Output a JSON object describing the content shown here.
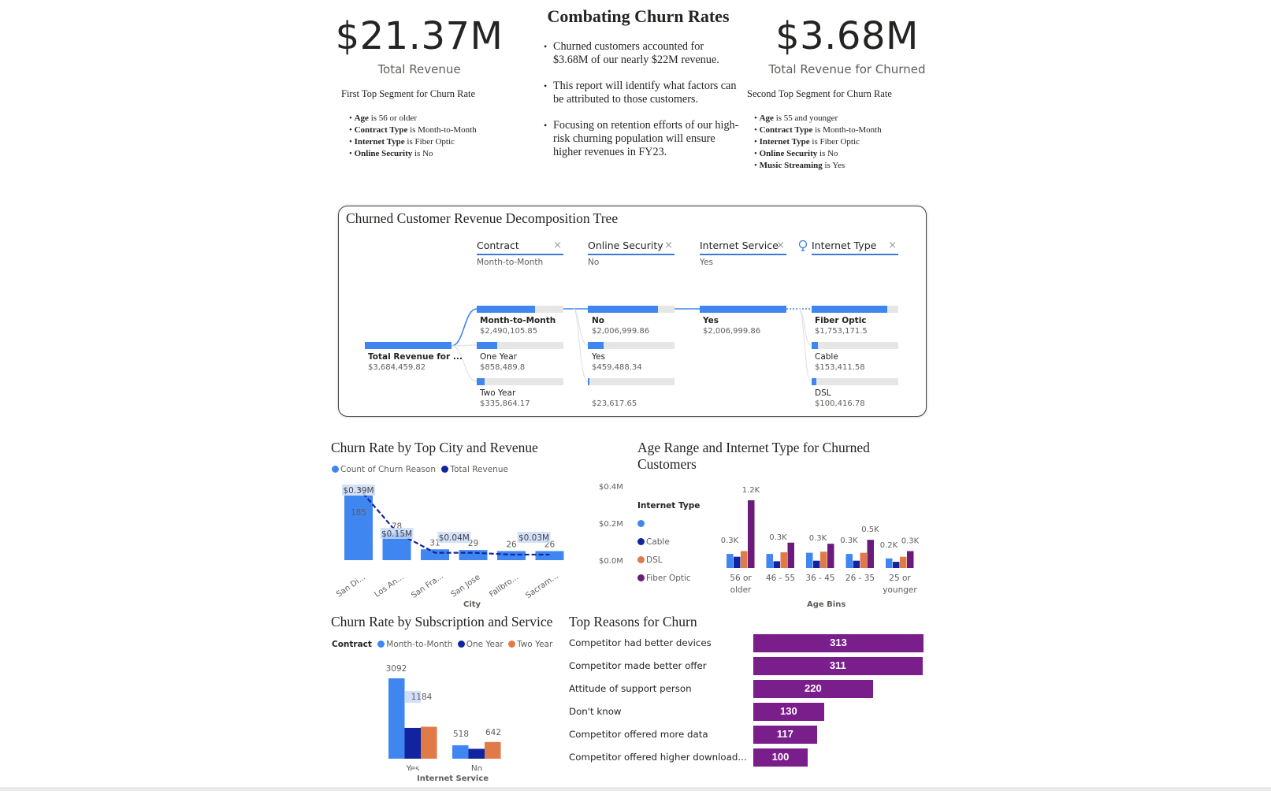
{
  "kpis": {
    "total_revenue": {
      "value": "$21.37M",
      "label": "Total Revenue"
    },
    "churned_revenue": {
      "value": "$3.68M",
      "label": "Total Revenue for Churned"
    }
  },
  "segments": {
    "first": {
      "title": "First Top Segment for Churn Rate",
      "items": [
        {
          "key": "Age",
          "rest": " is 56 or older"
        },
        {
          "key": "Contract Type",
          "rest": " is Month-to-Month"
        },
        {
          "key": "Internet Type",
          "rest": " is Fiber Optic"
        },
        {
          "key": "Online Security",
          "rest": " is No"
        }
      ]
    },
    "second": {
      "title": "Second Top Segment for Churn Rate",
      "items": [
        {
          "key": "Age",
          "rest": " is 55 and younger"
        },
        {
          "key": "Contract Type",
          "rest": " is Month-to-Month"
        },
        {
          "key": "Internet Type",
          "rest": " is Fiber Optic"
        },
        {
          "key": "Online Security",
          "rest": " is No"
        },
        {
          "key": "Music Streaming",
          "rest": " is Yes"
        }
      ]
    }
  },
  "summary": {
    "title": "Combating Churn Rates",
    "bullets": [
      "Churned customers accounted for $3.68M of our nearly $22M revenue.",
      "This report will identify what factors can be attributed to those customers.",
      "Focusing on retention efforts of our high-risk churning population will ensure higher revenues in FY23."
    ]
  },
  "tree": {
    "title": "Churned Customer Revenue Decomposition Tree",
    "levels": [
      {
        "name": "Contract",
        "selected": "Month-to-Month",
        "close": "×"
      },
      {
        "name": "Online Security",
        "selected": "No",
        "close": "×"
      },
      {
        "name": "Internet Service",
        "selected": "Yes",
        "close": "×"
      },
      {
        "name": "Internet Type",
        "selected": "",
        "close": "×"
      }
    ],
    "root": {
      "label": "Total Revenue for ...",
      "value": "$3,684,459.82"
    },
    "contract": [
      {
        "label": "Month-to-Month",
        "value": "$2,490,105.85",
        "share": 0.676
      },
      {
        "label": "One Year",
        "value": "$858,489.8",
        "share": 0.233
      },
      {
        "label": "Two Year",
        "value": "$335,864.17",
        "share": 0.091
      }
    ],
    "security": [
      {
        "label": "No",
        "value": "$2,006,999.86",
        "share": 0.806
      },
      {
        "label": "Yes",
        "value": "$459,488.34",
        "share": 0.185
      },
      {
        "label": "",
        "value": "$23,617.65",
        "share": 0.009
      }
    ],
    "service": [
      {
        "label": "Yes",
        "value": "$2,006,999.86",
        "share": 1.0
      }
    ],
    "itype": [
      {
        "label": "Fiber Optic",
        "value": "$1,753,171.5",
        "share": 0.874
      },
      {
        "label": "Cable",
        "value": "$153,411.58",
        "share": 0.076
      },
      {
        "label": "DSL",
        "value": "$100,416.78",
        "share": 0.05
      }
    ]
  },
  "city_chart": {
    "title": "Churn Rate by Top City and Revenue",
    "legend": [
      "Count of Churn Reason",
      "Total Revenue"
    ],
    "colors": {
      "count": "#3f86f0",
      "revenue": "#12239e"
    },
    "xlabel": "City",
    "right_ticks": [
      "$0.4M",
      "$0.2M",
      "$0.0M"
    ],
    "chart_data": {
      "type": "bar",
      "categories": [
        "San Di...",
        "Los An...",
        "San Fra...",
        "San Jose",
        "Fallbro...",
        "Sacram..."
      ],
      "series": [
        {
          "name": "Count of Churn Reason",
          "values": [
            185,
            78,
            31,
            29,
            26,
            26
          ]
        },
        {
          "name": "Total Revenue",
          "values": [
            0.39,
            0.15,
            0.04,
            0.04,
            0.03,
            0.03
          ]
        }
      ],
      "data_labels": [
        "185",
        "78",
        "31",
        "29",
        "26",
        "26"
      ],
      "revenue_labels": [
        "$0.39M",
        "$0.15M",
        "$0.04M",
        "$0.03M"
      ],
      "y2lim": [
        0,
        0.4
      ]
    }
  },
  "age_chart": {
    "title": "Age Range and Internet Type for Churned Customers",
    "legend_title": "Internet Type",
    "legend": [
      {
        "name": "",
        "color": "#3f86f0"
      },
      {
        "name": "Cable",
        "color": "#12239e"
      },
      {
        "name": "DSL",
        "color": "#e07a48"
      },
      {
        "name": "Fiber Optic",
        "color": "#6b1b7a"
      }
    ],
    "xlabel": "Age Bins",
    "chart_data": {
      "type": "bar",
      "categories": [
        "56 or older",
        "46 - 55",
        "36 - 45",
        "26 - 35",
        "25 or younger"
      ],
      "series": [
        {
          "name": "",
          "values": [
            0.25,
            0.25,
            0.27,
            0.25,
            0.17
          ]
        },
        {
          "name": "Cable",
          "values": [
            0.2,
            0.12,
            0.13,
            0.13,
            0.11
          ]
        },
        {
          "name": "DSL",
          "values": [
            0.3,
            0.28,
            0.29,
            0.27,
            0.2
          ]
        },
        {
          "name": "Fiber Optic",
          "values": [
            1.2,
            0.45,
            0.43,
            0.5,
            0.3
          ]
        }
      ],
      "labels": [
        [
          "0.3K",
          "1.2K"
        ],
        [
          "0.3K"
        ],
        [
          "0.3K"
        ],
        [
          "0.3K",
          "0.5K"
        ],
        [
          "0.2K",
          "0.3K"
        ]
      ]
    }
  },
  "sub_chart": {
    "title": "Churn Rate by Subscription and Service",
    "legend_title": "Contract",
    "legend": [
      {
        "name": "Month-to-Month",
        "color": "#3f86f0"
      },
      {
        "name": "One Year",
        "color": "#12239e"
      },
      {
        "name": "Two Year",
        "color": "#e07a48"
      }
    ],
    "xlabel": "Internet Service",
    "chart_data": {
      "type": "bar",
      "categories": [
        "Yes",
        "No"
      ],
      "series": [
        {
          "name": "Month-to-Month",
          "values": [
            3092,
            518
          ]
        },
        {
          "name": "One Year",
          "values": [
            1184,
            380
          ]
        },
        {
          "name": "Two Year",
          "values": [
            1230,
            642
          ]
        }
      ],
      "data_labels": [
        "3092",
        "1184",
        "518",
        "642"
      ]
    }
  },
  "reasons_chart": {
    "title": "Top Reasons for Churn",
    "color": "#7a1e8b",
    "chart_data": {
      "type": "bar",
      "categories": [
        "Competitor had better devices",
        "Competitor made better offer",
        "Attitude of support person",
        "Don't know",
        "Competitor offered more data",
        "Competitor offered higher download..."
      ],
      "values": [
        313,
        311,
        220,
        130,
        117,
        100
      ],
      "labels": [
        "313",
        "311",
        "220",
        "130",
        "117",
        "100"
      ]
    }
  }
}
